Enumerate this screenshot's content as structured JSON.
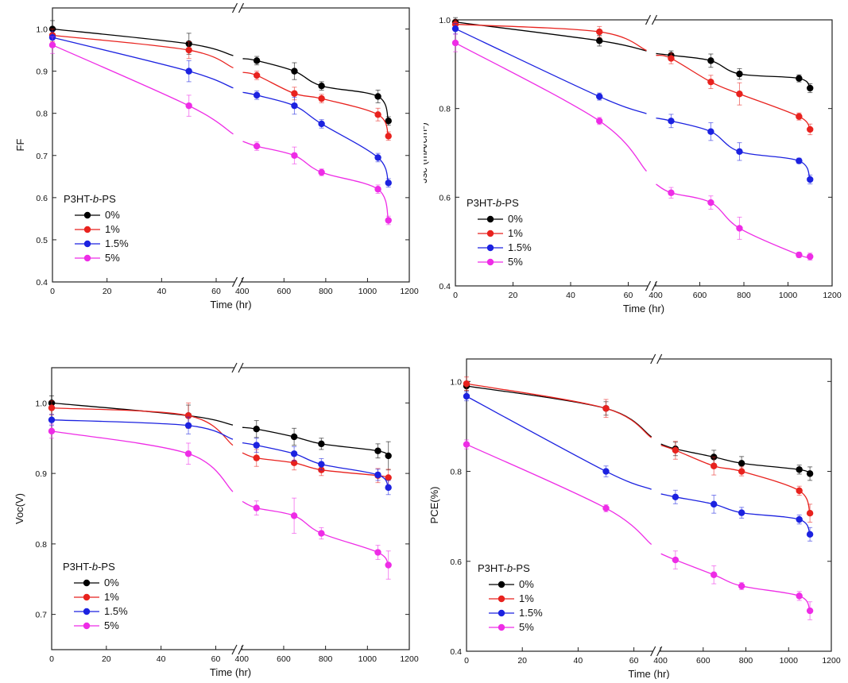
{
  "colors": {
    "c0": "#000000",
    "c1": "#e8221e",
    "c15": "#1c22e0",
    "c5": "#ee2ce6"
  },
  "chart_data": [
    {
      "id": "ff",
      "type": "line",
      "xlabel": "Time (hr)",
      "ylabel": "FF",
      "ylim": [
        0.4,
        1.05
      ],
      "yticks": [
        "0.4",
        "0.5",
        "0.6",
        "0.7",
        "0.8",
        "0.9",
        "1.0"
      ],
      "legend_title_prefix": "P3HT-",
      "legend_title_italic": "b",
      "legend_title_suffix": "-PS",
      "xticks_left": [
        "0",
        "20",
        "40",
        "60"
      ],
      "xticks_right": [
        "400",
        "600",
        "800",
        "1000",
        "1200"
      ],
      "series": [
        {
          "name": "0%",
          "color": "#000000",
          "x": [
            0,
            50,
            470,
            650,
            780,
            1050,
            1100
          ],
          "y": [
            1.0,
            0.965,
            0.925,
            0.9,
            0.865,
            0.84,
            0.782
          ],
          "err": [
            0.02,
            0.025,
            0.01,
            0.02,
            0.01,
            0.015,
            0.01
          ]
        },
        {
          "name": "1%",
          "color": "#e8221e",
          "x": [
            0,
            50,
            470,
            650,
            780,
            1050,
            1100
          ],
          "y": [
            0.985,
            0.95,
            0.89,
            0.847,
            0.835,
            0.797,
            0.746
          ],
          "err": [
            0.015,
            0.02,
            0.01,
            0.015,
            0.01,
            0.015,
            0.01
          ]
        },
        {
          "name": "1.5%",
          "color": "#1c22e0",
          "x": [
            0,
            50,
            470,
            650,
            780,
            1050,
            1100
          ],
          "y": [
            0.98,
            0.9,
            0.843,
            0.818,
            0.775,
            0.695,
            0.635
          ],
          "err": [
            0.015,
            0.025,
            0.01,
            0.02,
            0.01,
            0.01,
            0.01
          ]
        },
        {
          "name": "5%",
          "color": "#ee2ce6",
          "x": [
            0,
            50,
            470,
            650,
            780,
            1050,
            1100
          ],
          "y": [
            0.962,
            0.818,
            0.722,
            0.7,
            0.66,
            0.62,
            0.546
          ],
          "err": [
            0.02,
            0.025,
            0.01,
            0.02,
            0.008,
            0.01,
            0.01
          ]
        }
      ]
    },
    {
      "id": "jsc",
      "type": "line",
      "xlabel": "Time (hr)",
      "ylabel": "Jsc (mA/cm²)",
      "ylim": [
        0.4,
        1.0
      ],
      "yticks": [
        "0.4",
        "0.6",
        "0.8",
        "1.0"
      ],
      "legend_title_prefix": "P3HT-",
      "legend_title_italic": "b",
      "legend_title_suffix": "-PS",
      "xticks_left": [
        "0",
        "20",
        "40",
        "60"
      ],
      "xticks_right": [
        "400",
        "600",
        "800",
        "1000",
        "1200"
      ],
      "series": [
        {
          "name": "0%",
          "color": "#000000",
          "x": [
            0,
            50,
            470,
            650,
            780,
            1050,
            1100
          ],
          "y": [
            0.995,
            0.953,
            0.92,
            0.908,
            0.878,
            0.868,
            0.846
          ],
          "err": [
            0.01,
            0.012,
            0.01,
            0.015,
            0.012,
            0.008,
            0.01
          ]
        },
        {
          "name": "1%",
          "color": "#e8221e",
          "x": [
            0,
            50,
            470,
            650,
            780,
            1050,
            1100
          ],
          "y": [
            0.99,
            0.973,
            0.913,
            0.86,
            0.833,
            0.782,
            0.753
          ],
          "err": [
            0.01,
            0.012,
            0.012,
            0.015,
            0.025,
            0.008,
            0.012
          ]
        },
        {
          "name": "1.5%",
          "color": "#1c22e0",
          "x": [
            0,
            50,
            470,
            650,
            780,
            1050,
            1100
          ],
          "y": [
            0.98,
            0.827,
            0.772,
            0.748,
            0.703,
            0.682,
            0.64
          ],
          "err": [
            0.012,
            0.008,
            0.015,
            0.02,
            0.02,
            0.006,
            0.01
          ]
        },
        {
          "name": "5%",
          "color": "#ee2ce6",
          "x": [
            0,
            50,
            470,
            650,
            780,
            1050,
            1100
          ],
          "y": [
            0.948,
            0.772,
            0.61,
            0.588,
            0.53,
            0.47,
            0.466
          ],
          "err": [
            0.02,
            0.008,
            0.012,
            0.015,
            0.025,
            0.006,
            0.008
          ]
        }
      ]
    },
    {
      "id": "voc",
      "type": "line",
      "xlabel": "Time (hr)",
      "ylabel": "Voc(V)",
      "ylim": [
        0.65,
        1.05
      ],
      "yticks": [
        "0.7",
        "0.8",
        "0.9",
        "1.0"
      ],
      "legend_title_prefix": "P3HT-",
      "legend_title_italic": "b",
      "legend_title_suffix": "-PS",
      "xticks_left": [
        "0",
        "20",
        "40",
        "60"
      ],
      "xticks_right": [
        "400",
        "600",
        "800",
        "1000",
        "1200"
      ],
      "series": [
        {
          "name": "0%",
          "color": "#000000",
          "x": [
            0,
            50,
            470,
            650,
            780,
            1050,
            1100
          ],
          "y": [
            1.0,
            0.982,
            0.963,
            0.952,
            0.942,
            0.932,
            0.925
          ],
          "err": [
            0.01,
            0.015,
            0.012,
            0.012,
            0.008,
            0.01,
            0.02
          ]
        },
        {
          "name": "1%",
          "color": "#e8221e",
          "x": [
            0,
            50,
            470,
            650,
            780,
            1050,
            1100
          ],
          "y": [
            0.993,
            0.982,
            0.922,
            0.915,
            0.905,
            0.897,
            0.894
          ],
          "err": [
            0.01,
            0.018,
            0.012,
            0.01,
            0.008,
            0.01,
            0.012
          ]
        },
        {
          "name": "1.5%",
          "color": "#1c22e0",
          "x": [
            0,
            50,
            470,
            650,
            780,
            1050,
            1100
          ],
          "y": [
            0.976,
            0.968,
            0.94,
            0.928,
            0.913,
            0.898,
            0.88
          ],
          "err": [
            0.008,
            0.012,
            0.01,
            0.01,
            0.008,
            0.008,
            0.01
          ]
        },
        {
          "name": "5%",
          "color": "#ee2ce6",
          "x": [
            0,
            50,
            470,
            650,
            780,
            1050,
            1100
          ],
          "y": [
            0.96,
            0.928,
            0.851,
            0.84,
            0.815,
            0.788,
            0.77
          ],
          "err": [
            0.01,
            0.015,
            0.01,
            0.025,
            0.008,
            0.01,
            0.02
          ]
        }
      ]
    },
    {
      "id": "pce",
      "type": "line",
      "xlabel": "Time (hr)",
      "ylabel": "PCE(%)",
      "ylim": [
        0.4,
        1.05
      ],
      "yticks": [
        "0.4",
        "0.6",
        "0.8",
        "1.0"
      ],
      "legend_title_prefix": "P3HT-",
      "legend_title_italic": "b",
      "legend_title_suffix": "-PS",
      "xticks_left": [
        "0",
        "20",
        "40",
        "60"
      ],
      "xticks_right": [
        "400",
        "600",
        "800",
        "1000",
        "1200"
      ],
      "series": [
        {
          "name": "0%",
          "color": "#000000",
          "x": [
            0,
            50,
            470,
            650,
            780,
            1050,
            1100
          ],
          "y": [
            0.99,
            0.94,
            0.85,
            0.832,
            0.818,
            0.804,
            0.795
          ],
          "err": [
            0.01,
            0.015,
            0.015,
            0.015,
            0.015,
            0.01,
            0.015
          ]
        },
        {
          "name": "1%",
          "color": "#e8221e",
          "x": [
            0,
            50,
            470,
            650,
            780,
            1050,
            1100
          ],
          "y": [
            0.995,
            0.94,
            0.847,
            0.812,
            0.8,
            0.757,
            0.707
          ],
          "err": [
            0.015,
            0.02,
            0.02,
            0.02,
            0.01,
            0.01,
            0.02
          ]
        },
        {
          "name": "1.5%",
          "color": "#1c22e0",
          "x": [
            0,
            50,
            470,
            650,
            780,
            1050,
            1100
          ],
          "y": [
            0.967,
            0.8,
            0.743,
            0.727,
            0.708,
            0.693,
            0.66
          ],
          "err": [
            0.01,
            0.012,
            0.015,
            0.02,
            0.012,
            0.01,
            0.015
          ]
        },
        {
          "name": "5%",
          "color": "#ee2ce6",
          "x": [
            0,
            50,
            470,
            650,
            780,
            1050,
            1100
          ],
          "y": [
            0.86,
            0.718,
            0.603,
            0.57,
            0.545,
            0.523,
            0.49
          ],
          "err": [
            0.01,
            0.008,
            0.02,
            0.02,
            0.008,
            0.01,
            0.02
          ]
        }
      ]
    }
  ]
}
